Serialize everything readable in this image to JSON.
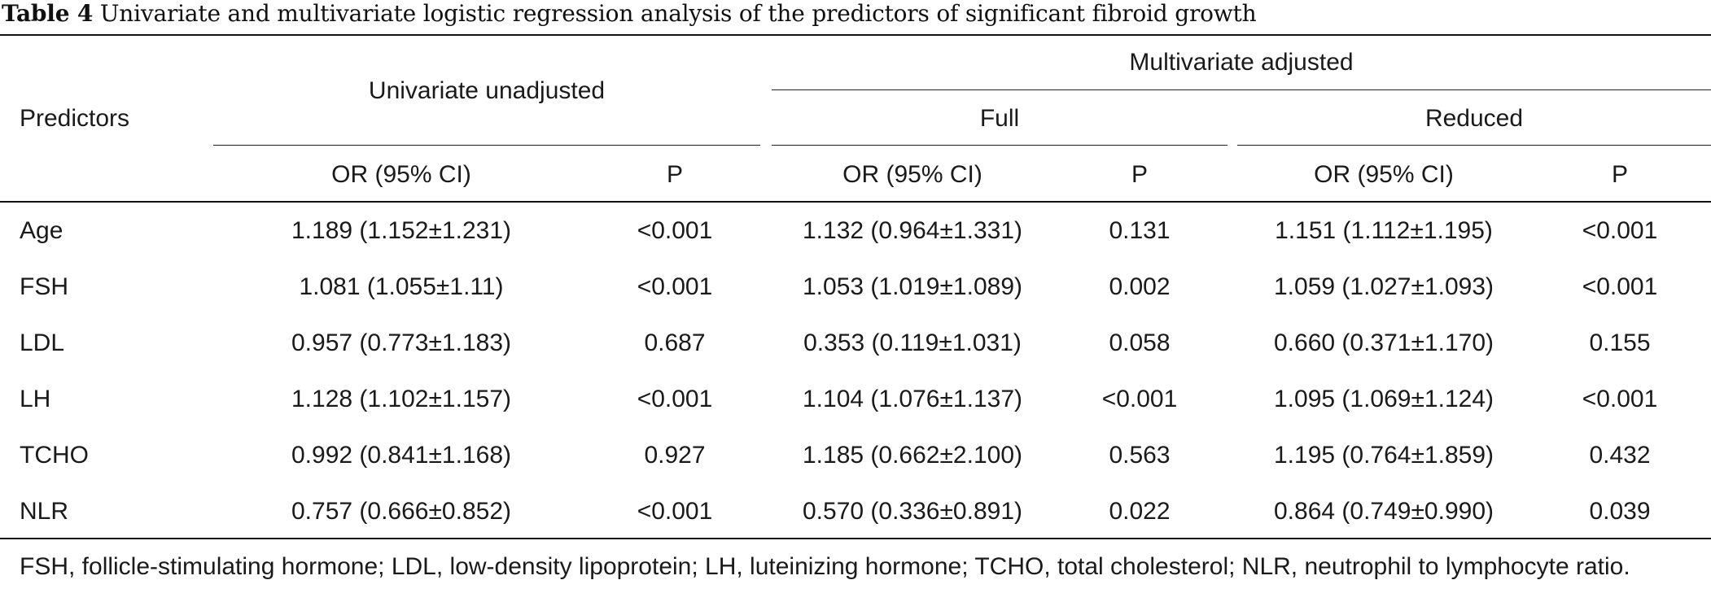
{
  "caption": {
    "label": "Table 4",
    "text": "Univariate and multivariate logistic regression analysis of the predictors of significant fibroid growth"
  },
  "header": {
    "predictors": "Predictors",
    "univariate": "Univariate unadjusted",
    "multivariate": "Multivariate adjusted",
    "full": "Full",
    "reduced": "Reduced",
    "or_ci": "OR (95% CI)",
    "p": "P"
  },
  "rows": [
    {
      "name": "Age",
      "uni_or": "1.189 (1.152±1.231)",
      "uni_p": "<0.001",
      "full_or": "1.132 (0.964±1.331)",
      "full_p": "0.131",
      "red_or": "1.151 (1.112±1.195)",
      "red_p": "<0.001"
    },
    {
      "name": "FSH",
      "uni_or": "1.081 (1.055±1.11)",
      "uni_p": "<0.001",
      "full_or": "1.053 (1.019±1.089)",
      "full_p": "0.002",
      "red_or": "1.059 (1.027±1.093)",
      "red_p": "<0.001"
    },
    {
      "name": "LDL",
      "uni_or": "0.957 (0.773±1.183)",
      "uni_p": "0.687",
      "full_or": "0.353 (0.119±1.031)",
      "full_p": "0.058",
      "red_or": "0.660 (0.371±1.170)",
      "red_p": "0.155"
    },
    {
      "name": "LH",
      "uni_or": "1.128 (1.102±1.157)",
      "uni_p": "<0.001",
      "full_or": "1.104 (1.076±1.137)",
      "full_p": "<0.001",
      "red_or": "1.095 (1.069±1.124)",
      "red_p": "<0.001"
    },
    {
      "name": "TCHO",
      "uni_or": "0.992 (0.841±1.168)",
      "uni_p": "0.927",
      "full_or": "1.185 (0.662±2.100)",
      "full_p": "0.563",
      "red_or": "1.195 (0.764±1.859)",
      "red_p": "0.432"
    },
    {
      "name": "NLR",
      "uni_or": "0.757 (0.666±0.852)",
      "uni_p": "<0.001",
      "full_or": "0.570 (0.336±0.891)",
      "full_p": "0.022",
      "red_or": "0.864 (0.749±0.990)",
      "red_p": "0.039"
    }
  ],
  "footnote": "FSH, follicle-stimulating hormone; LDL, low-density lipoprotein; LH, luteinizing hormone; TCHO, total cholesterol; NLR, neutrophil to lymphocyte ratio."
}
